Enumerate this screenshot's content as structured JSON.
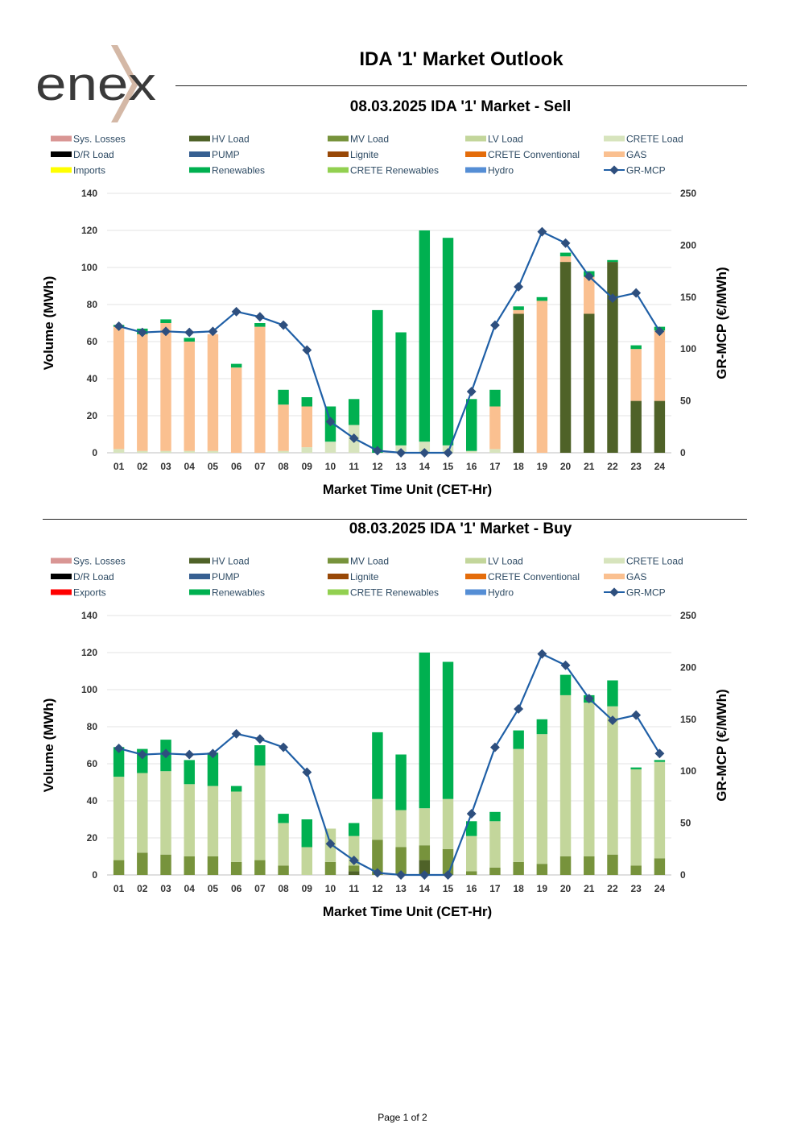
{
  "header": {
    "brand": "enex",
    "title": "IDA '1' Market Outlook"
  },
  "footer": {
    "page_label": "Page 1 of 2"
  },
  "legend_colors": {
    "Sys. Losses": "#d99694",
    "HV Load": "#4f6228",
    "MV Load": "#77933c",
    "LV Load": "#c3d69b",
    "CRETE Load": "#d7e4bd",
    "D/R Load": "#000000",
    "PUMP": "#365f91",
    "Lignite": "#984807",
    "CRETE Conventional": "#e46c0a",
    "GAS": "#fac090",
    "Imports": "#ffff00",
    "Exports": "#ff0000",
    "Renewables": "#00b050",
    "CRETE Renewables": "#92d050",
    "Hydro": "#558ed5",
    "GR-MCP": "#1f5fa6"
  },
  "chart_data": [
    {
      "type": "bar",
      "title": "08.03.2025  IDA '1' Market - Sell",
      "xlabel": "Market Time Unit (CET-Hr)",
      "ylabel": "Volume (MWh)",
      "y2label": "GR-MCP (€/MWh)",
      "ylim": [
        0,
        140
      ],
      "y2lim": [
        0,
        250
      ],
      "yticks": [
        0,
        20,
        40,
        60,
        80,
        100,
        120,
        140
      ],
      "y2ticks": [
        0,
        50,
        100,
        150,
        200,
        250
      ],
      "grid": true,
      "legend_position": "top",
      "legend": [
        "Sys. Losses",
        "HV Load",
        "MV Load",
        "LV Load",
        "CRETE Load",
        "D/R Load",
        "PUMP",
        "Lignite",
        "CRETE Conventional",
        "GAS",
        "Imports",
        "Renewables",
        "CRETE Renewables",
        "Hydro",
        "GR-MCP"
      ],
      "categories": [
        "01",
        "02",
        "03",
        "04",
        "05",
        "06",
        "07",
        "08",
        "09",
        "10",
        "11",
        "12",
        "13",
        "14",
        "15",
        "16",
        "17",
        "18",
        "19",
        "20",
        "21",
        "22",
        "23",
        "24"
      ],
      "series": [
        {
          "name": "HV Load",
          "values": [
            0,
            0,
            0,
            0,
            0,
            0,
            0,
            0,
            0,
            0,
            0,
            0,
            0,
            0,
            0,
            0,
            0,
            75,
            0,
            103,
            75,
            103,
            28,
            28
          ]
        },
        {
          "name": "CRETE Load",
          "values": [
            2,
            1,
            1,
            1,
            1,
            0,
            0,
            1,
            3,
            6,
            15,
            0,
            4,
            6,
            4,
            1,
            2,
            0,
            0,
            0,
            0,
            0,
            0,
            0
          ]
        },
        {
          "name": "GAS",
          "values": [
            66,
            63,
            69,
            59,
            63,
            46,
            68,
            25,
            22,
            0,
            0,
            0,
            0,
            0,
            0,
            0,
            23,
            2,
            82,
            3,
            20,
            0,
            28,
            38
          ]
        },
        {
          "name": "Renewables",
          "values": [
            1,
            3,
            2,
            2,
            0,
            2,
            2,
            8,
            5,
            19,
            14,
            77,
            61,
            114,
            112,
            28,
            9,
            2,
            2,
            2,
            3,
            1,
            2,
            2
          ]
        }
      ],
      "line": {
        "name": "GR-MCP",
        "values": [
          122,
          116,
          117,
          116,
          117,
          136,
          131,
          123,
          99,
          30,
          14,
          2,
          0,
          0,
          0,
          59,
          123,
          160,
          213,
          202,
          170,
          149,
          154,
          117
        ]
      }
    },
    {
      "type": "bar",
      "title": "08.03.2025  IDA '1' Market - Buy",
      "xlabel": "Market Time Unit (CET-Hr)",
      "ylabel": "Volume (MWh)",
      "y2label": "GR-MCP (€/MWh)",
      "ylim": [
        0,
        140
      ],
      "y2lim": [
        0,
        250
      ],
      "yticks": [
        0,
        20,
        40,
        60,
        80,
        100,
        120,
        140
      ],
      "y2ticks": [
        0,
        50,
        100,
        150,
        200,
        250
      ],
      "grid": true,
      "legend_position": "top",
      "legend": [
        "Sys. Losses",
        "HV Load",
        "MV Load",
        "LV Load",
        "CRETE Load",
        "D/R Load",
        "PUMP",
        "Lignite",
        "CRETE Conventional",
        "GAS",
        "Exports",
        "Renewables",
        "CRETE Renewables",
        "Hydro",
        "GR-MCP"
      ],
      "categories": [
        "01",
        "02",
        "03",
        "04",
        "05",
        "06",
        "07",
        "08",
        "09",
        "10",
        "11",
        "12",
        "13",
        "14",
        "15",
        "16",
        "17",
        "18",
        "19",
        "20",
        "21",
        "22",
        "23",
        "24"
      ],
      "series": [
        {
          "name": "HV Load",
          "values": [
            0,
            0,
            0,
            0,
            0,
            0,
            0,
            0,
            0,
            0,
            2,
            0,
            0,
            8,
            0,
            0,
            0,
            0,
            0,
            0,
            0,
            0,
            0,
            0
          ]
        },
        {
          "name": "MV Load",
          "values": [
            8,
            12,
            11,
            10,
            10,
            7,
            8,
            5,
            0,
            7,
            3,
            19,
            15,
            8,
            14,
            2,
            4,
            7,
            6,
            10,
            10,
            11,
            5,
            9
          ]
        },
        {
          "name": "LV Load",
          "values": [
            45,
            43,
            45,
            39,
            38,
            38,
            51,
            23,
            15,
            18,
            16,
            22,
            20,
            20,
            27,
            19,
            25,
            61,
            70,
            87,
            83,
            80,
            52,
            52
          ]
        },
        {
          "name": "Renewables",
          "values": [
            16,
            13,
            17,
            13,
            18,
            3,
            11,
            5,
            15,
            0,
            7,
            36,
            30,
            84,
            74,
            8,
            5,
            10,
            8,
            11,
            4,
            14,
            1,
            1
          ]
        }
      ],
      "line": {
        "name": "GR-MCP",
        "values": [
          122,
          116,
          117,
          116,
          117,
          136,
          131,
          123,
          99,
          30,
          14,
          2,
          0,
          0,
          0,
          59,
          123,
          160,
          213,
          202,
          170,
          149,
          154,
          117
        ]
      }
    }
  ]
}
